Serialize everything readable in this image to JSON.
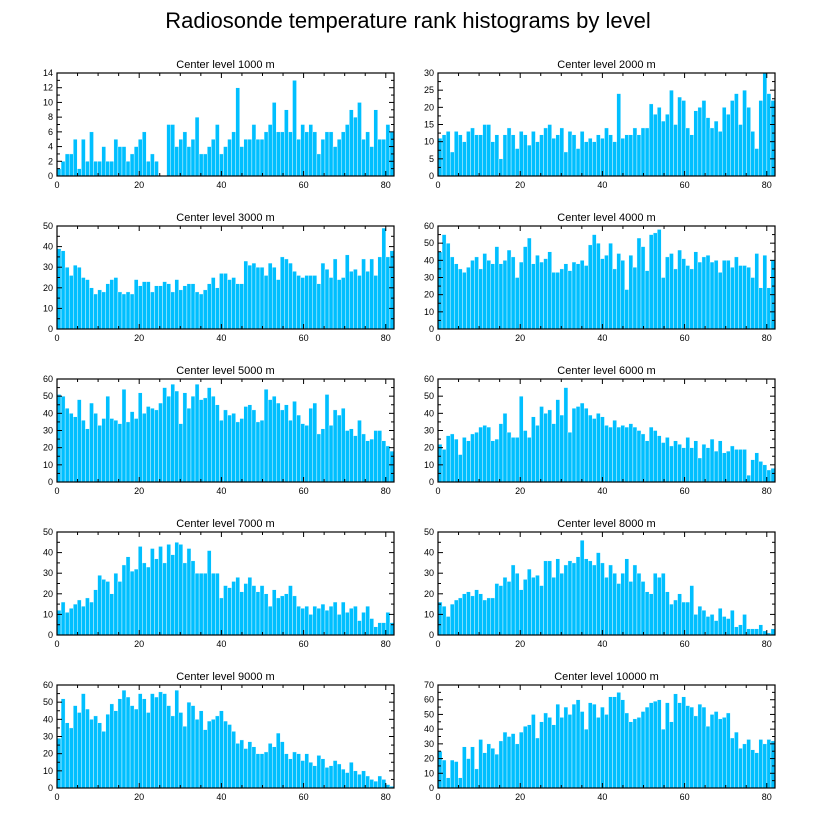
{
  "title": "Radiosonde temperature rank histograms by level",
  "colors": {
    "bar": "#00bfff",
    "frame": "#000000",
    "background": "#ffffff"
  },
  "chart_data": [
    {
      "type": "bar",
      "title": "Center level 1000 m",
      "xlim": [
        0,
        82
      ],
      "ylim": [
        0,
        14
      ],
      "xticks": [
        0,
        20,
        40,
        60,
        80
      ],
      "yticks": [
        0,
        2,
        4,
        6,
        8,
        10,
        12,
        14
      ],
      "values": [
        1,
        2,
        3,
        3,
        5,
        1,
        5,
        2,
        6,
        2,
        2,
        4,
        2,
        2,
        5,
        4,
        4,
        2,
        3,
        4,
        5,
        6,
        2,
        3,
        2,
        0,
        0,
        7,
        7,
        4,
        5,
        6,
        4,
        5,
        8,
        3,
        3,
        4,
        5,
        7,
        3,
        4,
        5,
        6,
        12,
        4,
        5,
        5,
        7,
        5,
        5,
        6,
        7,
        10,
        6,
        6,
        9,
        6,
        13,
        5,
        7,
        6,
        7,
        6,
        3,
        5,
        6,
        6,
        4,
        5,
        6,
        7,
        9,
        8,
        10,
        5,
        6,
        4,
        9,
        5,
        5,
        7,
        6
      ]
    },
    {
      "type": "bar",
      "title": "Center level 2000 m",
      "xlim": [
        0,
        82
      ],
      "ylim": [
        0,
        30
      ],
      "xticks": [
        0,
        20,
        40,
        60,
        80
      ],
      "yticks": [
        0,
        5,
        10,
        15,
        20,
        25,
        30
      ],
      "values": [
        11,
        12,
        13,
        7,
        13,
        12,
        10,
        13,
        14,
        12,
        12,
        15,
        15,
        10,
        12,
        5,
        12,
        14,
        12,
        8,
        13,
        12,
        9,
        13,
        10,
        12,
        14,
        15,
        11,
        12,
        14,
        7,
        13,
        12,
        8,
        13,
        10,
        11,
        10,
        12,
        11,
        14,
        12,
        10,
        24,
        11,
        12,
        12,
        14,
        12,
        14,
        14,
        21,
        18,
        20,
        16,
        18,
        25,
        15,
        23,
        22,
        14,
        12,
        19,
        20,
        22,
        17,
        14,
        16,
        13,
        20,
        18,
        22,
        24,
        15,
        25,
        20,
        13,
        8,
        22,
        30,
        24,
        22
      ]
    },
    {
      "type": "bar",
      "title": "Center level 3000 m",
      "xlim": [
        0,
        82
      ],
      "ylim": [
        0,
        50
      ],
      "xticks": [
        0,
        20,
        40,
        60,
        80
      ],
      "yticks": [
        0,
        10,
        20,
        30,
        40,
        50
      ],
      "values": [
        39,
        38,
        30,
        26,
        31,
        30,
        25,
        24,
        20,
        17,
        19,
        18,
        22,
        24,
        25,
        18,
        17,
        18,
        17,
        24,
        21,
        23,
        23,
        18,
        21,
        21,
        23,
        22,
        18,
        24,
        19,
        21,
        22,
        22,
        18,
        17,
        19,
        22,
        25,
        20,
        27,
        27,
        24,
        25,
        22,
        22,
        33,
        31,
        32,
        30,
        30,
        26,
        32,
        30,
        24,
        35,
        34,
        32,
        28,
        26,
        25,
        26,
        26,
        26,
        22,
        32,
        29,
        25,
        34,
        24,
        25,
        36,
        28,
        29,
        26,
        34,
        28,
        34,
        26,
        35,
        49,
        35,
        38
      ]
    },
    {
      "type": "bar",
      "title": "Center level 4000 m",
      "xlim": [
        0,
        82
      ],
      "ylim": [
        0,
        60
      ],
      "xticks": [
        0,
        20,
        40,
        60,
        80
      ],
      "yticks": [
        0,
        10,
        20,
        30,
        40,
        50,
        60
      ],
      "values": [
        45,
        55,
        50,
        42,
        38,
        35,
        33,
        36,
        40,
        42,
        35,
        44,
        40,
        38,
        48,
        38,
        40,
        46,
        42,
        30,
        39,
        48,
        53,
        38,
        43,
        39,
        41,
        45,
        33,
        33,
        35,
        38,
        34,
        39,
        38,
        40,
        37,
        49,
        55,
        50,
        41,
        43,
        50,
        35,
        44,
        40,
        23,
        43,
        36,
        53,
        48,
        34,
        55,
        56,
        58,
        30,
        42,
        44,
        35,
        46,
        41,
        37,
        35,
        45,
        39,
        42,
        43,
        39,
        40,
        33,
        40,
        40,
        36,
        42,
        37,
        37,
        36,
        30,
        44,
        24,
        43,
        24,
        40
      ]
    },
    {
      "type": "bar",
      "title": "Center level 5000 m",
      "xlim": [
        0,
        82
      ],
      "ylim": [
        0,
        60
      ],
      "xticks": [
        0,
        20,
        40,
        60,
        80
      ],
      "yticks": [
        0,
        10,
        20,
        30,
        40,
        50,
        60
      ],
      "values": [
        51,
        50,
        43,
        40,
        38,
        48,
        36,
        31,
        46,
        40,
        33,
        37,
        50,
        37,
        36,
        34,
        54,
        35,
        41,
        37,
        52,
        40,
        44,
        43,
        42,
        46,
        55,
        50,
        57,
        53,
        34,
        52,
        43,
        50,
        57,
        48,
        49,
        55,
        50,
        45,
        36,
        42,
        39,
        40,
        35,
        37,
        44,
        45,
        42,
        35,
        36,
        54,
        48,
        50,
        46,
        42,
        45,
        36,
        47,
        39,
        34,
        33,
        43,
        46,
        28,
        31,
        51,
        33,
        42,
        39,
        43,
        30,
        31,
        27,
        36,
        28,
        24,
        25,
        30,
        30,
        24,
        21,
        18
      ]
    },
    {
      "type": "bar",
      "title": "Center level 6000 m",
      "xlim": [
        0,
        82
      ],
      "ylim": [
        0,
        60
      ],
      "xticks": [
        0,
        20,
        40,
        60,
        80
      ],
      "yticks": [
        0,
        10,
        20,
        30,
        40,
        50,
        60
      ],
      "values": [
        22,
        19,
        27,
        28,
        25,
        16,
        26,
        24,
        28,
        29,
        32,
        33,
        32,
        24,
        25,
        34,
        40,
        29,
        26,
        26,
        50,
        30,
        26,
        38,
        33,
        44,
        40,
        42,
        34,
        48,
        39,
        55,
        29,
        43,
        44,
        46,
        43,
        39,
        37,
        40,
        38,
        33,
        32,
        36,
        32,
        33,
        32,
        34,
        32,
        30,
        28,
        24,
        32,
        30,
        27,
        23,
        26,
        21,
        24,
        22,
        20,
        26,
        20,
        24,
        14,
        22,
        20,
        25,
        18,
        24,
        17,
        18,
        21,
        19,
        19,
        19,
        4,
        13,
        17,
        12,
        10,
        7,
        8
      ]
    },
    {
      "type": "bar",
      "title": "Center level 7000 m",
      "xlim": [
        0,
        82
      ],
      "ylim": [
        0,
        50
      ],
      "xticks": [
        0,
        20,
        40,
        60,
        80
      ],
      "yticks": [
        0,
        10,
        20,
        30,
        40,
        50
      ],
      "values": [
        12,
        16,
        11,
        13,
        15,
        17,
        14,
        18,
        16,
        22,
        29,
        27,
        26,
        20,
        30,
        26,
        34,
        38,
        31,
        32,
        43,
        35,
        33,
        42,
        37,
        43,
        35,
        44,
        39,
        45,
        44,
        35,
        42,
        36,
        30,
        30,
        30,
        41,
        30,
        30,
        18,
        24,
        23,
        26,
        28,
        21,
        25,
        28,
        24,
        21,
        24,
        20,
        14,
        22,
        18,
        19,
        20,
        24,
        19,
        14,
        13,
        14,
        10,
        14,
        13,
        15,
        12,
        14,
        16,
        10,
        16,
        11,
        13,
        14,
        7,
        11,
        14,
        8,
        4,
        6,
        6,
        11,
        6
      ]
    },
    {
      "type": "bar",
      "title": "Center level 8000 m",
      "xlim": [
        0,
        82
      ],
      "ylim": [
        0,
        50
      ],
      "xticks": [
        0,
        20,
        40,
        60,
        80
      ],
      "yticks": [
        0,
        10,
        20,
        30,
        40,
        50
      ],
      "values": [
        16,
        14,
        9,
        15,
        17,
        18,
        20,
        21,
        19,
        22,
        20,
        17,
        18,
        18,
        25,
        24,
        28,
        26,
        34,
        30,
        22,
        27,
        32,
        28,
        29,
        24,
        36,
        36,
        28,
        37,
        30,
        34,
        36,
        35,
        38,
        46,
        37,
        36,
        34,
        40,
        35,
        28,
        34,
        30,
        25,
        30,
        37,
        26,
        34,
        30,
        26,
        21,
        20,
        30,
        28,
        30,
        21,
        15,
        17,
        20,
        16,
        16,
        24,
        10,
        14,
        12,
        9,
        10,
        7,
        13,
        9,
        8,
        12,
        4,
        5,
        10,
        3,
        3,
        3,
        5,
        2,
        1,
        3
      ]
    },
    {
      "type": "bar",
      "title": "Center level 9000 m",
      "xlim": [
        0,
        82
      ],
      "ylim": [
        0,
        60
      ],
      "xticks": [
        0,
        20,
        40,
        60,
        80
      ],
      "yticks": [
        0,
        10,
        20,
        30,
        40,
        50,
        60
      ],
      "values": [
        29,
        52,
        38,
        35,
        48,
        44,
        55,
        46,
        40,
        42,
        38,
        33,
        43,
        49,
        45,
        52,
        57,
        53,
        48,
        46,
        55,
        52,
        44,
        55,
        53,
        56,
        55,
        48,
        42,
        57,
        44,
        36,
        50,
        48,
        40,
        45,
        34,
        39,
        40,
        42,
        45,
        39,
        37,
        33,
        26,
        28,
        23,
        27,
        24,
        20,
        20,
        21,
        26,
        24,
        32,
        27,
        20,
        17,
        21,
        20,
        16,
        20,
        15,
        13,
        19,
        17,
        12,
        13,
        16,
        14,
        11,
        9,
        15,
        10,
        8,
        10,
        7,
        5,
        4,
        7,
        5,
        2,
        1
      ]
    },
    {
      "type": "bar",
      "title": "Center level 10000 m",
      "xlim": [
        0,
        82
      ],
      "ylim": [
        0,
        70
      ],
      "xticks": [
        0,
        20,
        40,
        60,
        80
      ],
      "yticks": [
        0,
        10,
        20,
        30,
        40,
        50,
        60,
        70
      ],
      "values": [
        25,
        19,
        7,
        19,
        18,
        7,
        28,
        20,
        28,
        13,
        33,
        24,
        30,
        27,
        23,
        32,
        38,
        35,
        37,
        30,
        38,
        42,
        43,
        50,
        34,
        45,
        51,
        48,
        43,
        57,
        48,
        55,
        50,
        57,
        60,
        52,
        40,
        58,
        57,
        48,
        55,
        50,
        62,
        62,
        65,
        60,
        51,
        45,
        47,
        48,
        52,
        55,
        58,
        59,
        60,
        40,
        58,
        45,
        64,
        58,
        62,
        56,
        55,
        49,
        57,
        55,
        42,
        50,
        52,
        47,
        48,
        51,
        34,
        38,
        27,
        30,
        33,
        26,
        24,
        33,
        30,
        33,
        32
      ]
    }
  ]
}
